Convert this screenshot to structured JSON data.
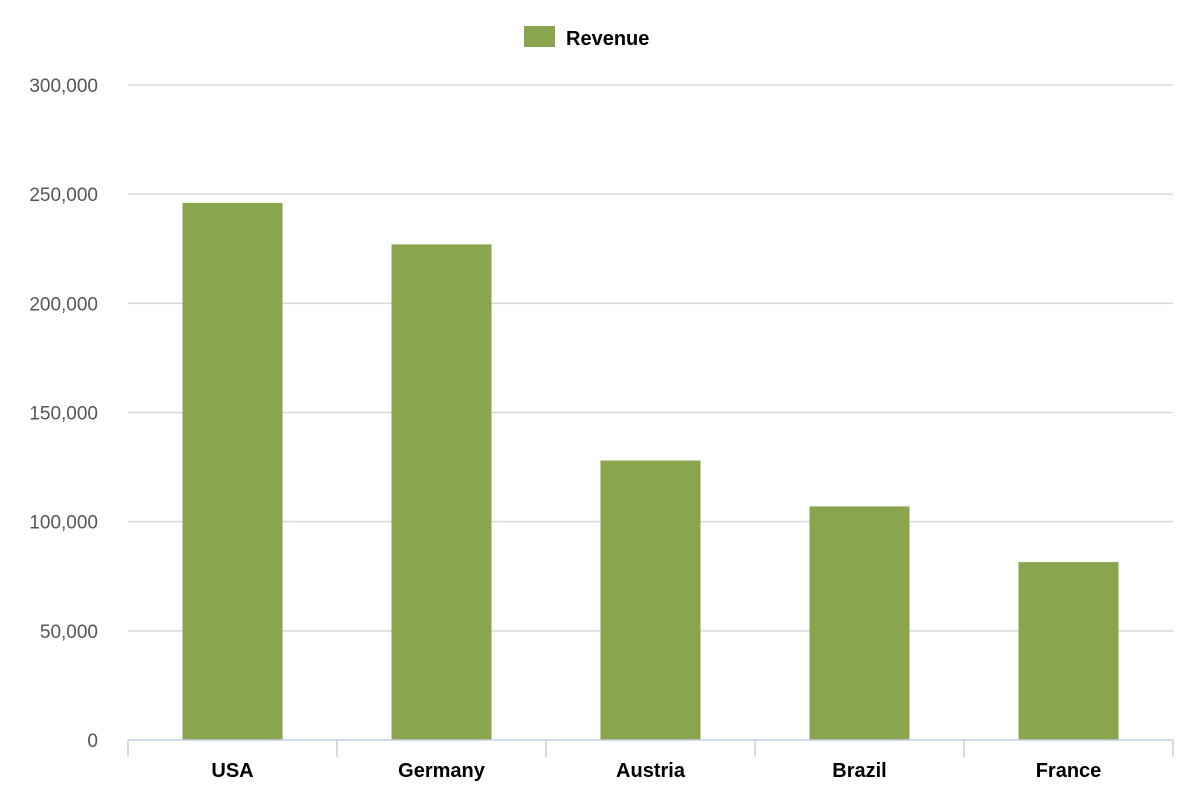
{
  "chart_data": {
    "type": "bar",
    "title": "",
    "xlabel": "",
    "ylabel": "",
    "categories": [
      "USA",
      "Germany",
      "Austria",
      "Brazil",
      "France"
    ],
    "series": [
      {
        "name": "Revenue",
        "color": "#89a54e",
        "values": [
          246000,
          227000,
          128000,
          107000,
          81500
        ]
      }
    ],
    "ylim": [
      0,
      300000
    ],
    "yticks": [
      0,
      50000,
      100000,
      150000,
      200000,
      250000,
      300000
    ],
    "ytick_labels": [
      "0",
      "50,000",
      "100,000",
      "150,000",
      "200,000",
      "250,000",
      "300,000"
    ],
    "grid": true,
    "legend": "top-center"
  }
}
